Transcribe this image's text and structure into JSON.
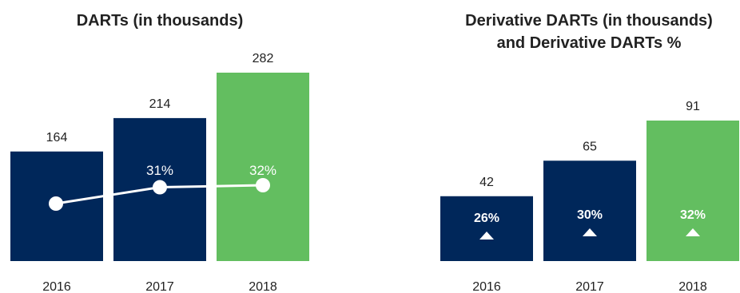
{
  "colors": {
    "navy": "#00275a",
    "green": "#63be60",
    "white": "#ffffff",
    "text": "#222222"
  },
  "chart_data": [
    {
      "type": "bar",
      "title": "DARTs (in thousands)",
      "categories": [
        "2016",
        "2017",
        "2018"
      ],
      "values": [
        164,
        214,
        282
      ],
      "value_labels": [
        "164",
        "214",
        "282"
      ],
      "bar_colors": [
        "navy",
        "navy",
        "green"
      ],
      "ylim": [
        0,
        282
      ],
      "overlay": {
        "type": "line",
        "marker": "circle",
        "values": [
          23,
          31,
          32
        ],
        "labels": [
          "",
          "31%",
          "32%"
        ]
      }
    },
    {
      "type": "bar",
      "title": [
        "Derivative DARTs (in thousands)",
        "and Derivative DARTs %"
      ],
      "categories": [
        "2016",
        "2017",
        "2018"
      ],
      "values": [
        42,
        65,
        91
      ],
      "value_labels": [
        "42",
        "65",
        "91"
      ],
      "bar_colors": [
        "navy",
        "navy",
        "green"
      ],
      "ylim": [
        0,
        91
      ],
      "overlay": {
        "type": "marker",
        "marker": "triangle-up",
        "labels": [
          "26%",
          "30%",
          "32%"
        ]
      }
    }
  ]
}
